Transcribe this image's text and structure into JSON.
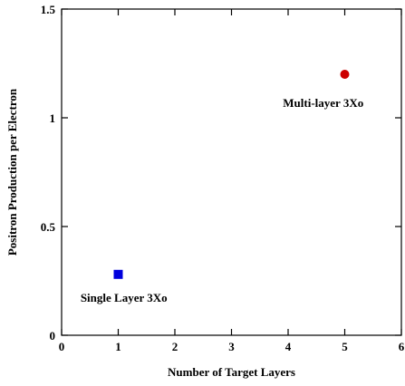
{
  "chart_data": {
    "type": "scatter",
    "xlabel": "Number of Target Layers",
    "ylabel": "Positron Production per Electron",
    "xlim": [
      0,
      6
    ],
    "ylim": [
      0,
      1.5
    ],
    "x_ticks": [
      0,
      1,
      2,
      3,
      4,
      5,
      6
    ],
    "y_ticks": [
      0,
      0.5,
      1,
      1.5
    ],
    "x_tick_labels": [
      "0",
      "1",
      "2",
      "3",
      "4",
      "5",
      "6"
    ],
    "y_tick_labels": [
      "0",
      "0.5",
      "1",
      "1.5"
    ],
    "grid": false,
    "series": [
      {
        "marker": "square",
        "color": "#0000dd",
        "points": [
          {
            "x": 1,
            "y": 0.28
          }
        ]
      },
      {
        "marker": "circle",
        "color": "#cc0000",
        "points": [
          {
            "x": 5,
            "y": 1.2
          }
        ]
      }
    ],
    "annotations": [
      {
        "text": "Single Layer 3Xo",
        "x": 1.1,
        "y": 0.155
      },
      {
        "text": "Multi-layer 3Xo",
        "x": 4.62,
        "y": 1.05
      }
    ]
  }
}
